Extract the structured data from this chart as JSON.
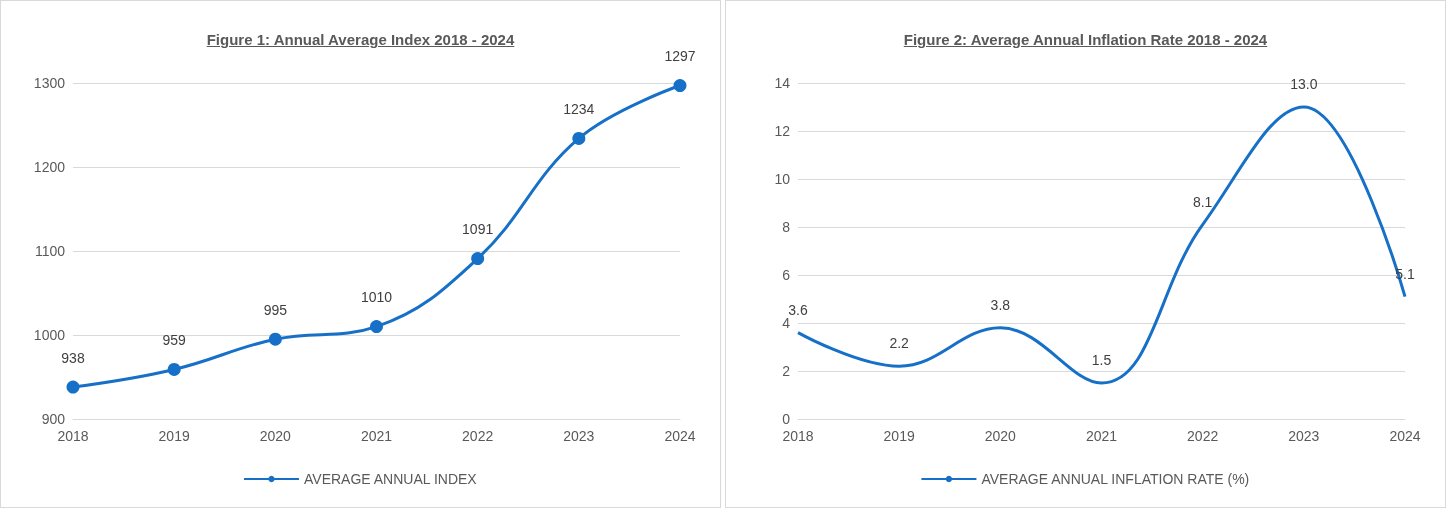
{
  "chart_data": [
    {
      "type": "line",
      "title": "Figure 1: Annual Average Index 2018 - 2024",
      "categories": [
        "2018",
        "2019",
        "2020",
        "2021",
        "2022",
        "2023",
        "2024"
      ],
      "series": [
        {
          "name": "AVERAGE ANNUAL INDEX",
          "color": "#1670c8",
          "values": [
            938,
            959,
            995,
            1010,
            1091,
            1234,
            1297
          ]
        }
      ],
      "ylim": [
        900,
        1300
      ],
      "yticks": [
        900,
        1000,
        1100,
        1200,
        1300
      ],
      "grid": "y",
      "legend": "bottom",
      "marker": "circle",
      "data_labels": true
    },
    {
      "type": "line",
      "title": "Figure 2: Average Annual Inflation Rate 2018 - 2024",
      "categories": [
        "2018",
        "2019",
        "2020",
        "2021",
        "2022",
        "2023",
        "2024"
      ],
      "series": [
        {
          "name": "AVERAGE ANNUAL INFLATION RATE (%)",
          "color": "#1670c8",
          "values": [
            3.6,
            2.2,
            3.8,
            1.5,
            8.1,
            13.0,
            5.1
          ]
        }
      ],
      "ylim": [
        0,
        14
      ],
      "yticks": [
        0,
        2,
        4,
        6,
        8,
        10,
        12,
        14
      ],
      "grid": "y",
      "legend": "bottom",
      "marker": "none",
      "value_labels": [
        "3.6",
        "2.2",
        "3.8",
        "1.5",
        "8.1",
        "13.0",
        "5.1"
      ]
    }
  ]
}
